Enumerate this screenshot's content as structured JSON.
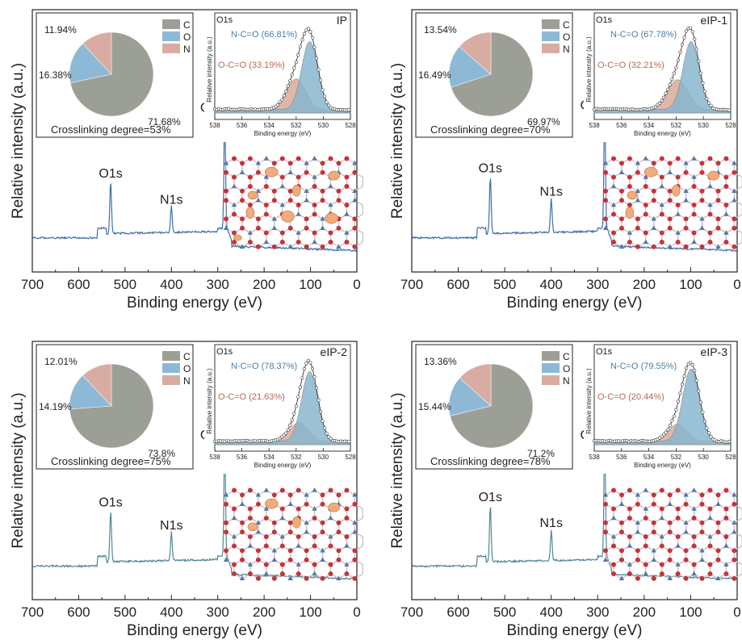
{
  "chart_data": [
    {
      "type": "line",
      "panel": "IP",
      "xlabel": "Binding energy (eV)",
      "ylabel": "Relative intensity (a.u.)",
      "xlim": [
        700,
        0
      ],
      "xticks": [
        "700",
        "600",
        "500",
        "400",
        "300",
        "200",
        "100",
        "0"
      ],
      "color": "#3d6fa8",
      "peaks": [
        {
          "label": "O1s",
          "x": 531,
          "height": 0.2
        },
        {
          "label": "N1s",
          "x": 400,
          "height": 0.1
        },
        {
          "label": "C1s",
          "x": 285,
          "height": 0.45
        }
      ],
      "pie": {
        "categories": [
          "C",
          "O",
          "N"
        ],
        "values": [
          71.68,
          16.38,
          11.94
        ],
        "labels": [
          "71.68%",
          "16.38%",
          "11.94%"
        ],
        "colors": [
          "#9c9f96",
          "#8db9d6",
          "#d8aca2"
        ],
        "caption": "Crosslinking degree=53%"
      },
      "inset": {
        "title": "O1s",
        "name": "IP",
        "xlabel": "Binding energy (eV)",
        "ylabel": "Relative intensity (a.u.)",
        "xlim": [
          538,
          528
        ],
        "xticks": [
          "538",
          "536",
          "534",
          "532",
          "530",
          "528"
        ],
        "series": [
          {
            "name": "N-C=O (66.81%)",
            "center": 531.0,
            "amplitude": 0.8,
            "sigma": 0.6,
            "color": "#88b6cf"
          },
          {
            "name": "O-C=O (33.19%)",
            "center": 532.0,
            "amplitude": 0.36,
            "sigma": 0.7,
            "color": "#d9aa99"
          }
        ]
      },
      "defects": 8
    },
    {
      "type": "line",
      "panel": "eIP-1",
      "xlabel": "Binding energy (eV)",
      "ylabel": "Relative intensity (a.u.)",
      "xlim": [
        700,
        0
      ],
      "xticks": [
        "700",
        "600",
        "500",
        "400",
        "300",
        "200",
        "100",
        "0"
      ],
      "color": "#3d6fa8",
      "peaks": [
        {
          "label": "O1s",
          "x": 531,
          "height": 0.22
        },
        {
          "label": "N1s",
          "x": 400,
          "height": 0.13
        },
        {
          "label": "C1s",
          "x": 285,
          "height": 0.46
        }
      ],
      "pie": {
        "categories": [
          "C",
          "O",
          "N"
        ],
        "values": [
          69.97,
          16.49,
          13.54
        ],
        "labels": [
          "69.97%",
          "16.49%",
          "13.54%"
        ],
        "colors": [
          "#9c9f96",
          "#8db9d6",
          "#d8aca2"
        ],
        "caption": "Crosslinking degree=70%"
      },
      "inset": {
        "title": "O1s",
        "name": "eIP-1",
        "xlabel": "Binding energy (eV)",
        "ylabel": "Relative intensity (a.u.)",
        "xlim": [
          538,
          528
        ],
        "xticks": [
          "538",
          "536",
          "534",
          "532",
          "530",
          "528"
        ],
        "series": [
          {
            "name": "N-C=O (67.78%)",
            "center": 530.9,
            "amplitude": 0.8,
            "sigma": 0.6,
            "color": "#88b6cf"
          },
          {
            "name": "O-C=O (32.21%)",
            "center": 531.9,
            "amplitude": 0.35,
            "sigma": 0.75,
            "color": "#d9aa99"
          }
        ]
      },
      "defects": 5
    },
    {
      "type": "line",
      "panel": "eIP-2",
      "xlabel": "Binding energy (eV)",
      "ylabel": "Relative intensity (a.u.)",
      "xlim": [
        700,
        0
      ],
      "xticks": [
        "700",
        "600",
        "500",
        "400",
        "300",
        "200",
        "100",
        "0"
      ],
      "color": "#4f8796",
      "peaks": [
        {
          "label": "O1s",
          "x": 531,
          "height": 0.2
        },
        {
          "label": "N1s",
          "x": 400,
          "height": 0.11
        },
        {
          "label": "C1s",
          "x": 285,
          "height": 0.46
        }
      ],
      "pie": {
        "categories": [
          "C",
          "O",
          "N"
        ],
        "values": [
          73.8,
          14.19,
          12.01
        ],
        "labels": [
          "73.8%",
          "14.19%",
          "12.01%"
        ],
        "colors": [
          "#9c9f96",
          "#8db9d6",
          "#d8aca2"
        ],
        "caption": "Crosslinking degree=75%"
      },
      "inset": {
        "title": "O1s",
        "name": "eIP-2",
        "xlabel": "Binding energy (eV)",
        "ylabel": "Relative intensity (a.u.)",
        "xlim": [
          538,
          528
        ],
        "xticks": [
          "538",
          "536",
          "534",
          "532",
          "530",
          "528"
        ],
        "series": [
          {
            "name": "N-C=O (78.37%)",
            "center": 531.0,
            "amplitude": 0.82,
            "sigma": 0.6,
            "color": "#88b6cf"
          },
          {
            "name": "O-C=O (21.63%)",
            "center": 531.8,
            "amplitude": 0.22,
            "sigma": 0.7,
            "color": "#d9aa99"
          }
        ]
      },
      "defects": 4
    },
    {
      "type": "line",
      "panel": "eIP-3",
      "xlabel": "Binding energy (eV)",
      "ylabel": "Relative intensity (a.u.)",
      "xlim": [
        700,
        0
      ],
      "xticks": [
        "700",
        "600",
        "500",
        "400",
        "300",
        "200",
        "100",
        "0"
      ],
      "color": "#4f8796",
      "peaks": [
        {
          "label": "O1s",
          "x": 531,
          "height": 0.22
        },
        {
          "label": "N1s",
          "x": 400,
          "height": 0.12
        },
        {
          "label": "C1s",
          "x": 285,
          "height": 0.46
        }
      ],
      "pie": {
        "categories": [
          "C",
          "O",
          "N"
        ],
        "values": [
          71.2,
          15.44,
          13.36
        ],
        "labels": [
          "71.2%",
          "15.44%",
          "13.36%"
        ],
        "colors": [
          "#9c9f96",
          "#8db9d6",
          "#d8aca2"
        ],
        "caption": "Crosslinking degree=78%"
      },
      "inset": {
        "title": "O1s",
        "name": "eIP-3",
        "xlabel": "Binding energy (eV)",
        "ylabel": "Relative intensity (a.u.)",
        "xlim": [
          538,
          528
        ],
        "xticks": [
          "538",
          "536",
          "534",
          "532",
          "530",
          "528"
        ],
        "series": [
          {
            "name": "N-C=O (79.55%)",
            "center": 530.9,
            "amplitude": 0.85,
            "sigma": 0.62,
            "color": "#88b6cf"
          },
          {
            "name": "O-C=O (20.44%)",
            "center": 531.9,
            "amplitude": 0.2,
            "sigma": 0.7,
            "color": "#d9aa99"
          }
        ]
      },
      "defects": 0
    }
  ]
}
